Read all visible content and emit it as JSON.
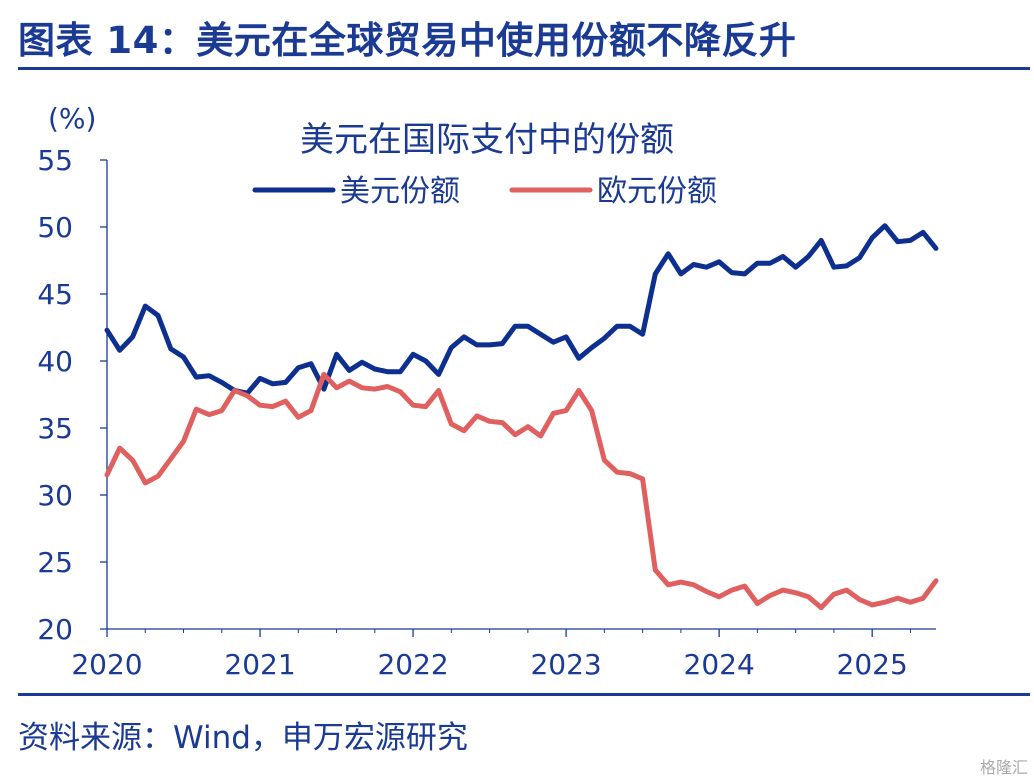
{
  "figure": {
    "title": "图表 14：美元在全球贸易中使用份额不降反升",
    "source": "资料来源：Wind，申万宏源研究",
    "watermark": "格隆汇"
  },
  "chart_data": {
    "type": "line",
    "title": "美元在国际支付中的份额",
    "ylabel": "(%)",
    "xlabel": "",
    "ylim": [
      20,
      55
    ],
    "yticks": [
      20,
      25,
      30,
      35,
      40,
      45,
      50,
      55
    ],
    "xlim": [
      2020.0,
      2025.417
    ],
    "xticks": [
      2020,
      2021,
      2022,
      2023,
      2024,
      2025
    ],
    "grid": false,
    "legend_position": "top-center",
    "x": [
      2020.0,
      2020.083,
      2020.167,
      2020.25,
      2020.333,
      2020.417,
      2020.5,
      2020.583,
      2020.667,
      2020.75,
      2020.833,
      2020.917,
      2021.0,
      2021.083,
      2021.167,
      2021.25,
      2021.333,
      2021.417,
      2021.5,
      2021.583,
      2021.667,
      2021.75,
      2021.833,
      2021.917,
      2022.0,
      2022.083,
      2022.167,
      2022.25,
      2022.333,
      2022.417,
      2022.5,
      2022.583,
      2022.667,
      2022.75,
      2022.833,
      2022.917,
      2023.0,
      2023.083,
      2023.167,
      2023.25,
      2023.333,
      2023.417,
      2023.5,
      2023.583,
      2023.667,
      2023.75,
      2023.833,
      2023.917,
      2024.0,
      2024.083,
      2024.167,
      2024.25,
      2024.333,
      2024.417,
      2024.5,
      2024.583,
      2024.667,
      2024.75,
      2024.833,
      2024.917,
      2025.0,
      2025.083,
      2025.167,
      2025.25,
      2025.333,
      2025.417
    ],
    "series": [
      {
        "name": "美元份额",
        "color": "#0d2f8f",
        "values": [
          42.3,
          40.8,
          41.8,
          44.1,
          43.4,
          40.9,
          40.3,
          38.8,
          38.9,
          38.4,
          37.8,
          37.6,
          38.7,
          38.3,
          38.4,
          39.5,
          39.8,
          37.9,
          40.5,
          39.3,
          39.9,
          39.4,
          39.2,
          39.2,
          40.5,
          40.0,
          39.0,
          41.0,
          41.8,
          41.2,
          41.2,
          41.3,
          42.6,
          42.6,
          42.0,
          41.4,
          41.8,
          40.2,
          41.0,
          41.7,
          42.6,
          42.6,
          42.0,
          46.5,
          48.0,
          46.5,
          47.2,
          47.0,
          47.4,
          46.6,
          46.5,
          47.3,
          47.3,
          47.8,
          47.0,
          47.8,
          49.0,
          47.0,
          47.1,
          47.7,
          49.2,
          50.1,
          48.9,
          49.0,
          49.6,
          48.4
        ]
      },
      {
        "name": "欧元份额",
        "color": "#e06060",
        "values": [
          31.5,
          33.5,
          32.6,
          30.9,
          31.4,
          32.7,
          34.0,
          36.4,
          36.0,
          36.3,
          37.8,
          37.4,
          36.7,
          36.6,
          37.0,
          35.8,
          36.3,
          39.0,
          38.0,
          38.5,
          38.0,
          37.9,
          38.1,
          37.7,
          36.7,
          36.6,
          37.8,
          35.3,
          34.8,
          35.9,
          35.5,
          35.4,
          34.5,
          35.1,
          34.4,
          36.1,
          36.3,
          37.8,
          36.3,
          32.6,
          31.7,
          31.6,
          31.2,
          24.4,
          23.3,
          23.5,
          23.3,
          22.8,
          22.4,
          22.9,
          23.2,
          21.9,
          22.5,
          22.9,
          22.7,
          22.4,
          21.6,
          22.6,
          22.9,
          22.2,
          21.8,
          22.0,
          22.3,
          22.0,
          22.3,
          23.6
        ]
      }
    ]
  }
}
